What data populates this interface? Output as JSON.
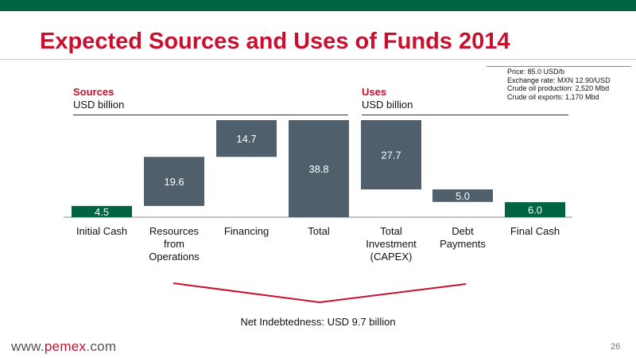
{
  "title": "Expected Sources and Uses of Funds 2014",
  "assumptions": [
    "Price: 85.0 USD/b",
    "Exchange rate: MXN 12.90/USD",
    "Crude oil production: 2,520 Mbd",
    "Crude oil exports: 1,170 Mbd"
  ],
  "sources": {
    "heading": "Sources",
    "unit": "USD billion"
  },
  "uses": {
    "heading": "Uses",
    "unit": "USD billion"
  },
  "net_label": "Net Indebtedness: USD 9.7 billion",
  "footer": {
    "url_prefix": "www.",
    "url_brand": "pemex",
    "url_suffix": ".com",
    "page": "26"
  },
  "colors": {
    "title_red": "#c8102e",
    "brand_green": "#006341",
    "bar_slate": "#4f5f6b",
    "bracket_red": "#c8102e"
  },
  "chart_data": {
    "type": "bar",
    "subtype": "waterfall",
    "unit": "USD billion",
    "categories": [
      "Initial Cash",
      "Resources from Operations",
      "Financing",
      "Total",
      "Total Investment (CAPEX)",
      "Debt Payments",
      "Final Cash"
    ],
    "values": [
      4.5,
      19.6,
      14.7,
      38.8,
      27.7,
      5.0,
      6.0
    ],
    "labels": [
      "4.5",
      "19.6",
      "14.7",
      "38.8",
      "27.7",
      "5.0",
      "6.0"
    ],
    "bar_ranges": [
      [
        0,
        4.5
      ],
      [
        4.5,
        24.1
      ],
      [
        24.1,
        38.8
      ],
      [
        0,
        38.8
      ],
      [
        11.1,
        38.8
      ],
      [
        6.1,
        11.1
      ],
      [
        0,
        6.0
      ]
    ],
    "bar_colors": [
      "#006341",
      "#4f5f6b",
      "#4f5f6b",
      "#4f5f6b",
      "#4f5f6b",
      "#4f5f6b",
      "#006341"
    ],
    "ylim": [
      0,
      38.8
    ]
  }
}
